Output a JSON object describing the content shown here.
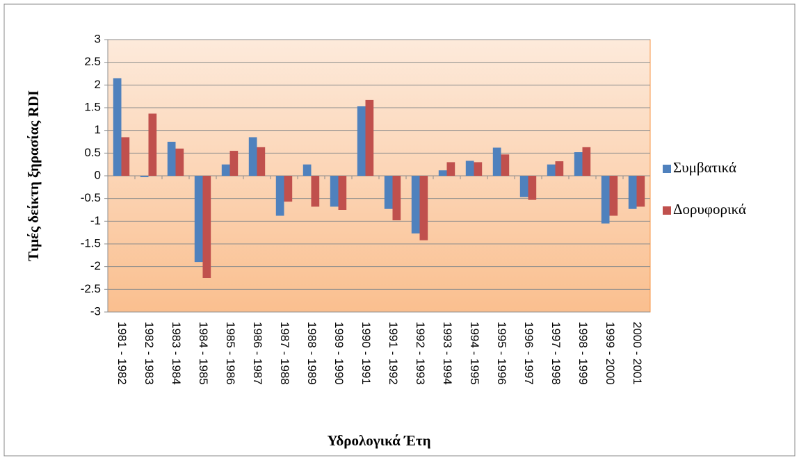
{
  "chart_data": {
    "type": "bar",
    "x_label": "Υδρολογικά Έτη",
    "y_label": "Τιμές δείκτη ξηρασίας RDI",
    "categories": [
      "1981 - 1982",
      "1982 - 1983",
      "1983 - 1984",
      "1984 - 1985",
      "1985 - 1986",
      "1986 - 1987",
      "1987 - 1988",
      "1988 - 1989",
      "1989 - 1990",
      "1990 - 1991",
      "1991 - 1992",
      "1992 - 1993",
      "1993 - 1994",
      "1994 - 1995",
      "1995 - 1996",
      "1996 - 1997",
      "1997 - 1998",
      "1998 - 1999",
      "1999 - 2000",
      "2000 - 2001"
    ],
    "series": [
      {
        "name": "Συμβατικά",
        "color": "#4f81bd",
        "values": [
          2.15,
          -0.03,
          0.75,
          -1.9,
          0.25,
          0.85,
          -0.88,
          0.25,
          -0.68,
          1.53,
          -0.73,
          -1.27,
          0.12,
          0.33,
          0.62,
          -0.47,
          0.25,
          0.52,
          -1.05,
          -0.73
        ]
      },
      {
        "name": "Δορυφορικά",
        "color": "#c0504d",
        "values": [
          0.85,
          1.37,
          0.6,
          -2.25,
          0.55,
          0.63,
          -0.57,
          -0.68,
          -0.75,
          1.67,
          -0.98,
          -1.42,
          0.3,
          0.3,
          0.47,
          -0.53,
          0.32,
          0.63,
          -0.88,
          -0.68
        ]
      }
    ],
    "ylim": [
      -3,
      3
    ],
    "yticks": [
      -3,
      -2.5,
      -2,
      -1.5,
      -1,
      -0.5,
      0,
      0.5,
      1,
      1.5,
      2,
      2.5,
      3
    ],
    "grid": true,
    "legend": "right"
  }
}
